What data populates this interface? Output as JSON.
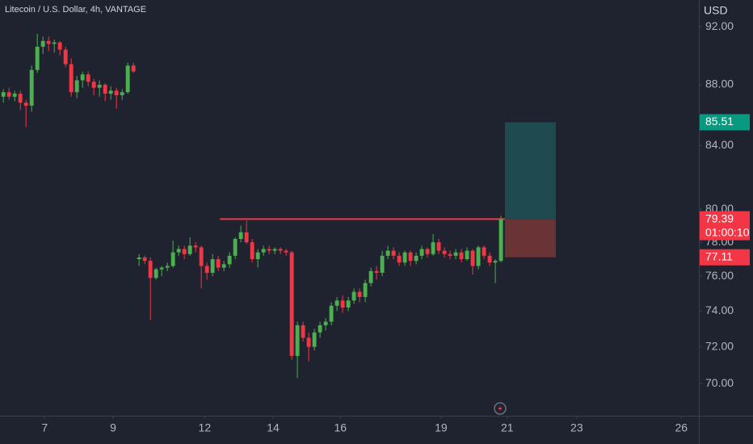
{
  "chart_data": {
    "type": "candlestick",
    "title": "Litecoin / U.S. Dollar, 4h, VANTAGE",
    "currency": "USD",
    "log_scale": true,
    "grid": false,
    "up_color": "#4caf50",
    "down_color": "#f23645",
    "ylim": [
      68.3,
      93.9
    ],
    "yticks": [
      {
        "value": 70,
        "label": "70.00"
      },
      {
        "value": 72,
        "label": "72.00"
      },
      {
        "value": 74,
        "label": "74.00"
      },
      {
        "value": 76,
        "label": "76.00"
      },
      {
        "value": 78,
        "label": "78.00"
      },
      {
        "value": 80,
        "label": "80.00"
      },
      {
        "value": 84,
        "label": "84.00"
      },
      {
        "value": 88,
        "label": "88.00"
      },
      {
        "value": 92,
        "label": "92.00"
      }
    ],
    "xlim": [
      -0.6,
      123
    ],
    "xticks": [
      {
        "value": 7.3,
        "label": "7"
      },
      {
        "value": 19.4,
        "label": "9"
      },
      {
        "value": 35.6,
        "label": "12"
      },
      {
        "value": 47.7,
        "label": "14"
      },
      {
        "value": 59.6,
        "label": "16"
      },
      {
        "value": 77.4,
        "label": "19"
      },
      {
        "value": 89.1,
        "label": "21"
      },
      {
        "value": 101.4,
        "label": "23"
      },
      {
        "value": 119.9,
        "label": "26"
      }
    ],
    "open": [
      87.2,
      87.5,
      87.2,
      87.4,
      86.8,
      86.6,
      89.0,
      90.6,
      91.0,
      90.8,
      90.9,
      90.4,
      89.4,
      87.5,
      88.3,
      88.7,
      88.2,
      87.8,
      88.0,
      87.4,
      87.6,
      87.3,
      87.5,
      89.3,
      77.0,
      77.1,
      76.9,
      75.9,
      76.4,
      76.5,
      76.6,
      77.4,
      77.6,
      77.3,
      77.8,
      77.7,
      76.6,
      76.2,
      77.0,
      76.5,
      76.7,
      77.2,
      78.2,
      78.6,
      78.0,
      77.0,
      77.4,
      77.6,
      77.5,
      77.6,
      77.5,
      77.4,
      71.5,
      73.2,
      72.5,
      72.0,
      72.8,
      73.2,
      73.4,
      74.3,
      74.6,
      74.2,
      74.6,
      75.1,
      74.8,
      75.6,
      76.3,
      76.2,
      77.2,
      77.5,
      77.2,
      76.8,
      77.4,
      76.9,
      77.2,
      77.6,
      77.3,
      78.0,
      77.5,
      77.3,
      77.2,
      77.4,
      77.0,
      77.5,
      76.6,
      77.7,
      77.2,
      76.8,
      76.9
    ],
    "high": [
      87.7,
      87.8,
      87.6,
      87.6,
      87.0,
      89.3,
      91.5,
      91.3,
      91.3,
      91.1,
      91.0,
      90.6,
      89.8,
      88.6,
      88.9,
      88.9,
      88.4,
      88.3,
      88.1,
      87.9,
      87.8,
      87.7,
      89.5,
      89.5,
      77.3,
      77.2,
      77.1,
      76.5,
      76.6,
      76.8,
      78.1,
      77.8,
      77.8,
      78.3,
      78.0,
      77.8,
      76.8,
      77.3,
      77.2,
      76.9,
      77.4,
      78.3,
      79.0,
      79.3,
      78.2,
      77.6,
      77.8,
      77.8,
      77.7,
      77.7,
      77.6,
      77.5,
      73.4,
      73.4,
      72.8,
      73.0,
      73.4,
      73.6,
      74.5,
      74.8,
      74.9,
      74.8,
      75.3,
      75.3,
      75.8,
      76.5,
      76.6,
      77.5,
      77.8,
      77.7,
      77.4,
      77.5,
      77.5,
      77.4,
      77.8,
      77.7,
      78.5,
      78.2,
      77.7,
      77.5,
      77.6,
      77.6,
      77.7,
      77.6,
      77.8,
      77.8,
      77.4,
      77.0,
      79.6
    ],
    "low": [
      86.8,
      87.0,
      86.9,
      86.3,
      85.2,
      86.2,
      88.8,
      90.1,
      90.3,
      90.2,
      90.0,
      89.2,
      87.2,
      87.1,
      87.8,
      87.9,
      87.3,
      87.2,
      86.9,
      87.0,
      86.4,
      87.0,
      87.4,
      88.8,
      76.6,
      76.7,
      73.5,
      75.8,
      76.0,
      76.3,
      76.5,
      77.2,
      77.0,
      77.2,
      77.4,
      75.3,
      75.8,
      76.0,
      76.3,
      76.3,
      76.5,
      77.0,
      78.0,
      77.9,
      76.8,
      76.5,
      77.2,
      77.3,
      77.3,
      77.3,
      77.2,
      71.3,
      70.3,
      72.3,
      71.2,
      71.8,
      72.5,
      72.9,
      73.2,
      74.0,
      73.9,
      74.0,
      74.4,
      74.5,
      74.5,
      75.4,
      75.8,
      76.0,
      77.0,
      77.0,
      76.6,
      76.6,
      76.6,
      76.7,
      77.0,
      77.1,
      77.2,
      77.3,
      77.1,
      77.0,
      77.0,
      76.8,
      76.9,
      76.1,
      76.4,
      77.0,
      76.6,
      75.6,
      76.8
    ],
    "close": [
      87.5,
      87.2,
      87.4,
      86.8,
      86.6,
      89.0,
      90.6,
      91.0,
      90.8,
      90.9,
      90.4,
      89.4,
      87.5,
      88.3,
      88.7,
      88.2,
      87.8,
      88.0,
      87.4,
      87.6,
      87.3,
      87.5,
      89.3,
      88.9,
      77.1,
      76.9,
      75.9,
      76.4,
      76.5,
      76.6,
      77.4,
      77.6,
      77.3,
      77.8,
      77.7,
      76.6,
      76.2,
      77.0,
      76.5,
      76.7,
      77.2,
      78.2,
      78.6,
      78.0,
      77.0,
      77.4,
      77.6,
      77.5,
      77.6,
      77.5,
      77.4,
      71.5,
      73.2,
      72.5,
      72.0,
      72.8,
      73.2,
      73.4,
      74.3,
      74.6,
      74.2,
      74.6,
      75.1,
      74.8,
      75.6,
      76.3,
      76.2,
      77.2,
      77.5,
      77.2,
      76.8,
      77.4,
      76.9,
      77.2,
      77.6,
      77.3,
      78.0,
      77.5,
      77.3,
      77.2,
      77.4,
      77.0,
      77.5,
      76.6,
      77.7,
      77.2,
      76.8,
      76.9,
      79.39
    ],
    "level": {
      "value": 79.4,
      "x_start": 38.3,
      "x_end": 88.7,
      "color": "#f23645"
    },
    "position": {
      "target": 85.51,
      "entry": 79.39,
      "stop": 77.11,
      "x_start": 88.7,
      "x_end": 97.7,
      "target_color": "#1e4a50",
      "stop_color": "#6a3336"
    },
    "last_price": 79.39,
    "countdown": "01:00:10",
    "target_label_color": "#089981"
  }
}
